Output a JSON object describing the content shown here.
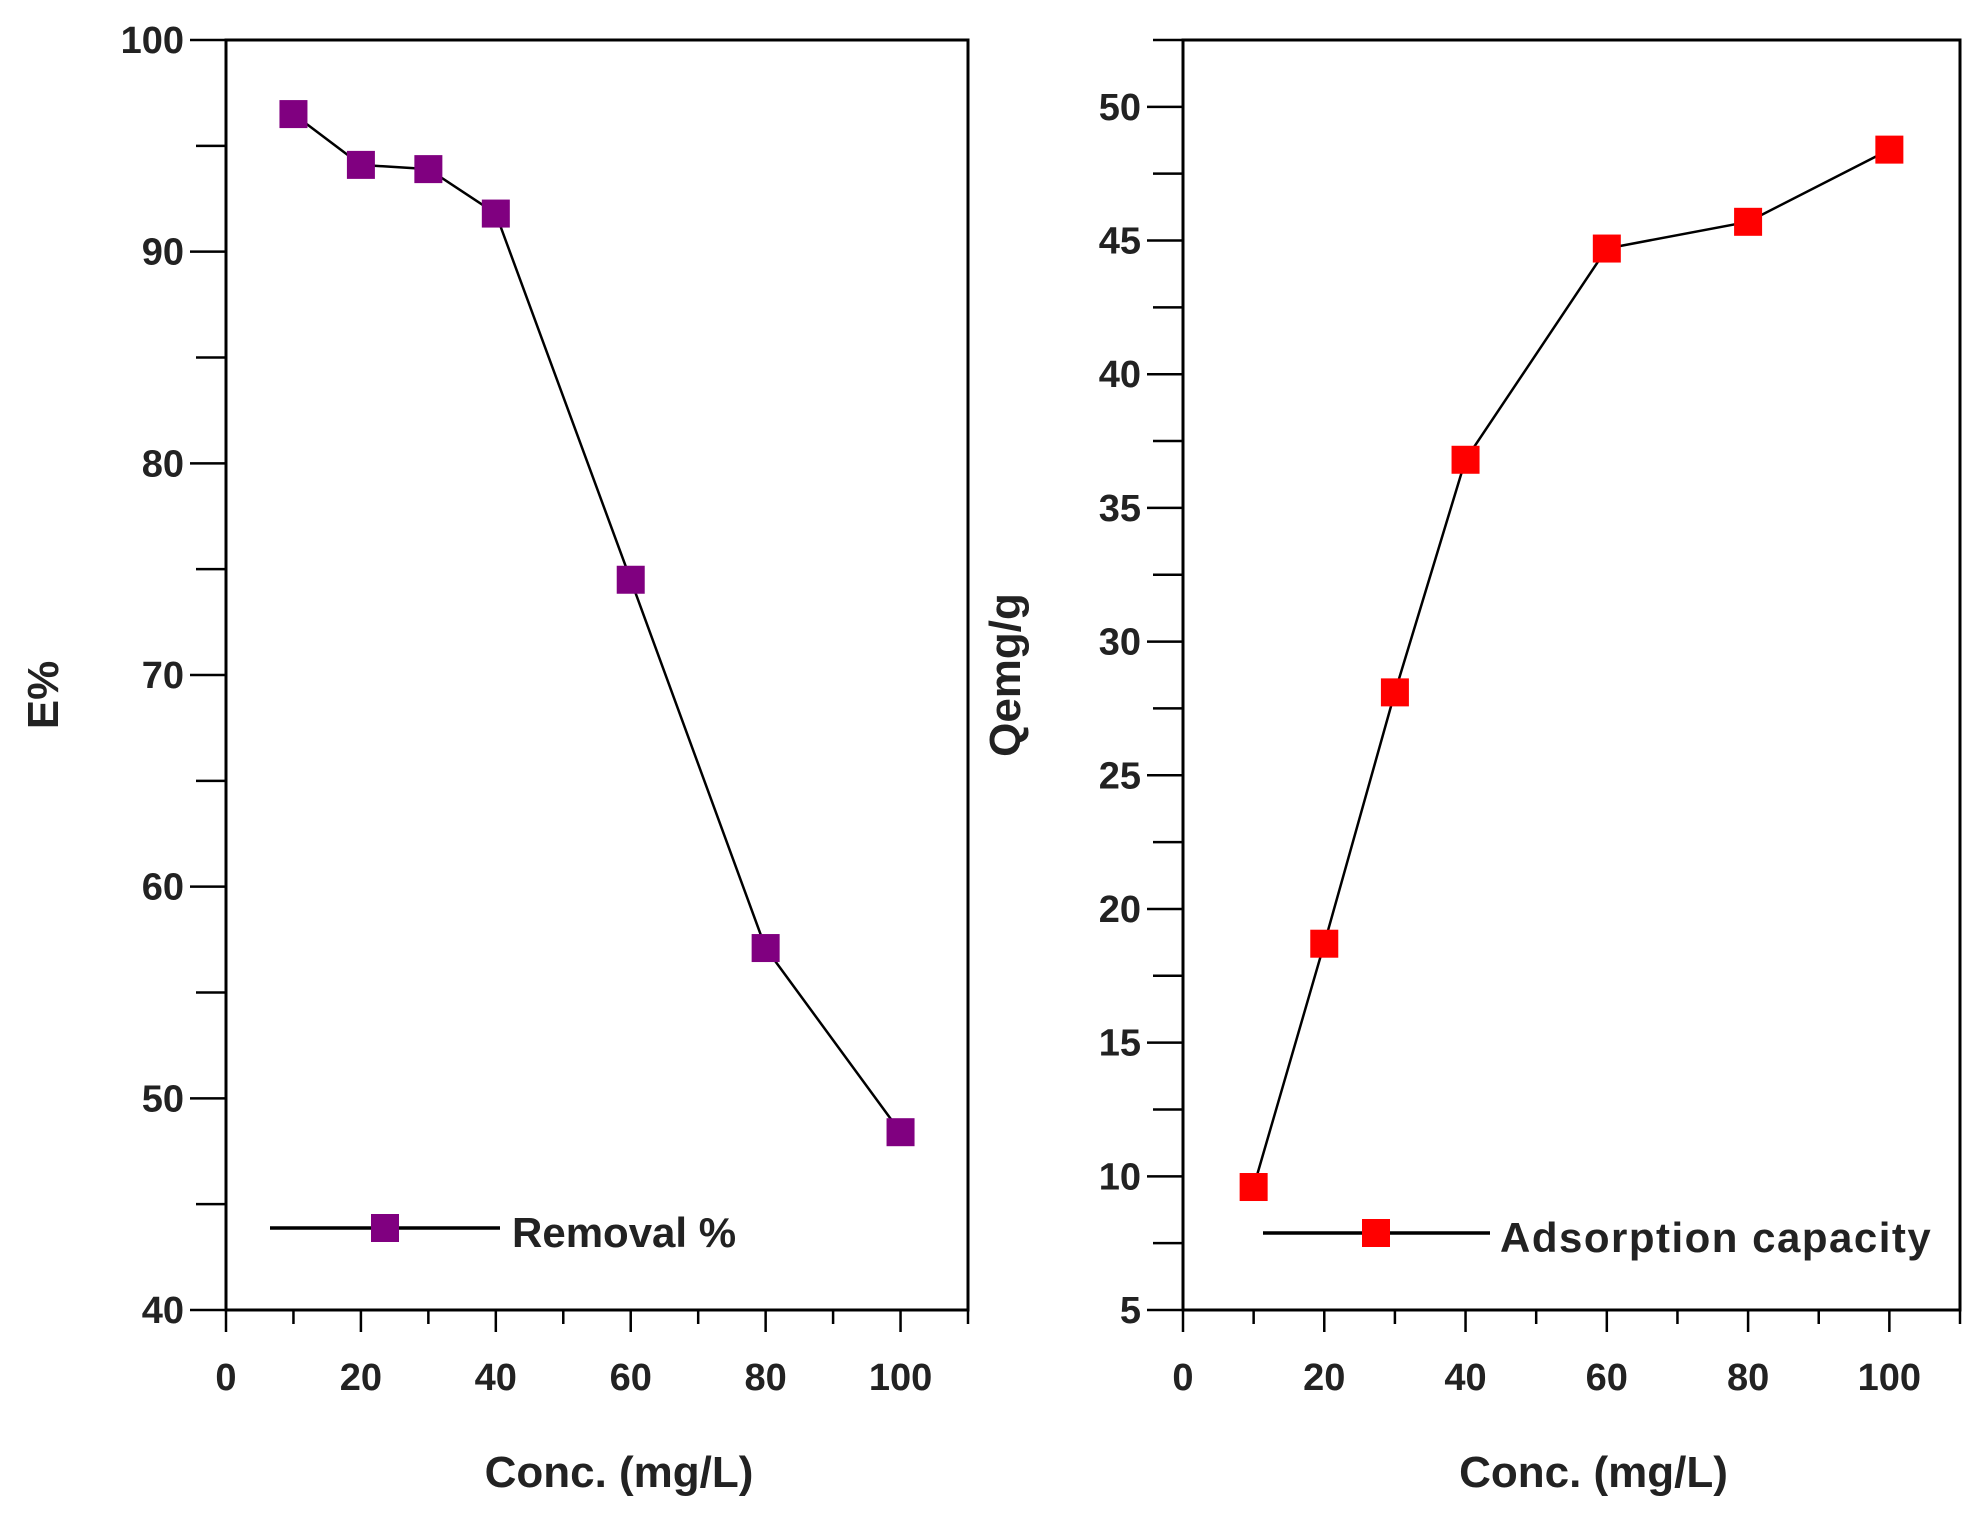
{
  "chart_data": [
    {
      "type": "line",
      "title": "",
      "xlabel": "Conc. (mg/L)",
      "ylabel": "E%",
      "xlim": [
        0,
        110
      ],
      "ylim": [
        40,
        100
      ],
      "x_ticks": [
        0,
        20,
        40,
        60,
        80,
        100
      ],
      "y_ticks": [
        40,
        50,
        60,
        70,
        80,
        90,
        100
      ],
      "legend_position": "bottom-left",
      "series": [
        {
          "name": "Removal %",
          "color": "#800080",
          "marker": "square",
          "x": [
            10,
            20,
            30,
            40,
            60,
            80,
            100
          ],
          "y": [
            96.5,
            94.1,
            93.9,
            91.8,
            74.5,
            57.1,
            48.4
          ]
        }
      ]
    },
    {
      "type": "line",
      "title": "",
      "xlabel": "Conc. (mg/L)",
      "ylabel": "Qemg/g",
      "xlim": [
        0,
        110
      ],
      "ylim": [
        5,
        52.5
      ],
      "x_ticks": [
        0,
        20,
        40,
        60,
        80,
        100
      ],
      "y_ticks": [
        5,
        10,
        15,
        20,
        25,
        30,
        35,
        40,
        45,
        50
      ],
      "legend_position": "bottom-left",
      "series": [
        {
          "name": "Adsorption capacity",
          "color": "#ff0000",
          "marker": "square",
          "x": [
            10,
            20,
            30,
            40,
            60,
            80,
            100
          ],
          "y": [
            9.6,
            18.7,
            28.1,
            36.8,
            44.7,
            45.7,
            48.4
          ]
        }
      ]
    }
  ]
}
